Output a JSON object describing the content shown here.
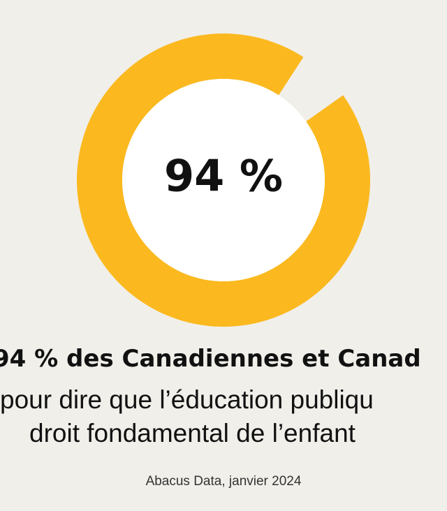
{
  "chart_data": {
    "type": "pie",
    "variant": "donut",
    "values": [
      94,
      6
    ],
    "center_label": "94 %",
    "colors": {
      "filled": "#fbb91f",
      "gap": "#f0efea",
      "inner": "#ffffff"
    }
  },
  "caption": {
    "headline": "94 % des Canadiennes et Canad",
    "line1": "pour dire que l’éducation publiqu",
    "line2": "droit fondamental de l’enfant",
    "source": "Abacus Data, janvier 2024"
  }
}
